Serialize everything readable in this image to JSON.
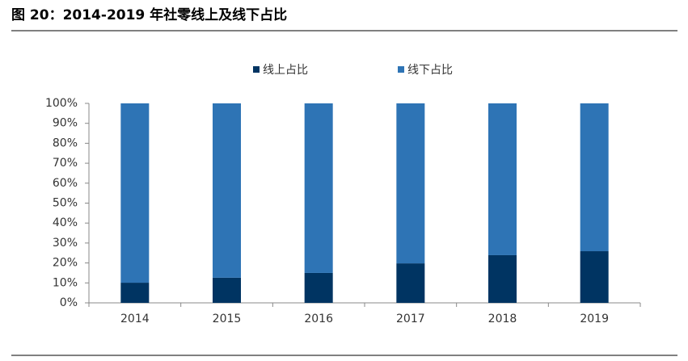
{
  "chart_data": {
    "type": "stacked_bar",
    "title": "图 20：2014-2019 年社零线上及线下占比",
    "categories": [
      "2014",
      "2015",
      "2016",
      "2017",
      "2018",
      "2019"
    ],
    "series": [
      {
        "name": "线上占比",
        "color": "#003462",
        "values": [
          10.1,
          12.6,
          15.0,
          19.8,
          23.9,
          25.9
        ]
      },
      {
        "name": "线下占比",
        "color": "#2e74b5",
        "values": [
          89.9,
          87.4,
          85.0,
          80.2,
          76.1,
          74.1
        ]
      }
    ],
    "ylim": [
      0,
      100
    ],
    "yticks": [
      {
        "value": 0,
        "label": "0%"
      },
      {
        "value": 10,
        "label": "10%"
      },
      {
        "value": 20,
        "label": "20%"
      },
      {
        "value": 30,
        "label": "30%"
      },
      {
        "value": 40,
        "label": "40%"
      },
      {
        "value": 50,
        "label": "50%"
      },
      {
        "value": 60,
        "label": "60%"
      },
      {
        "value": 70,
        "label": "70%"
      },
      {
        "value": 80,
        "label": "80%"
      },
      {
        "value": 90,
        "label": "90%"
      },
      {
        "value": 100,
        "label": "100%"
      }
    ],
    "legend": "top"
  }
}
